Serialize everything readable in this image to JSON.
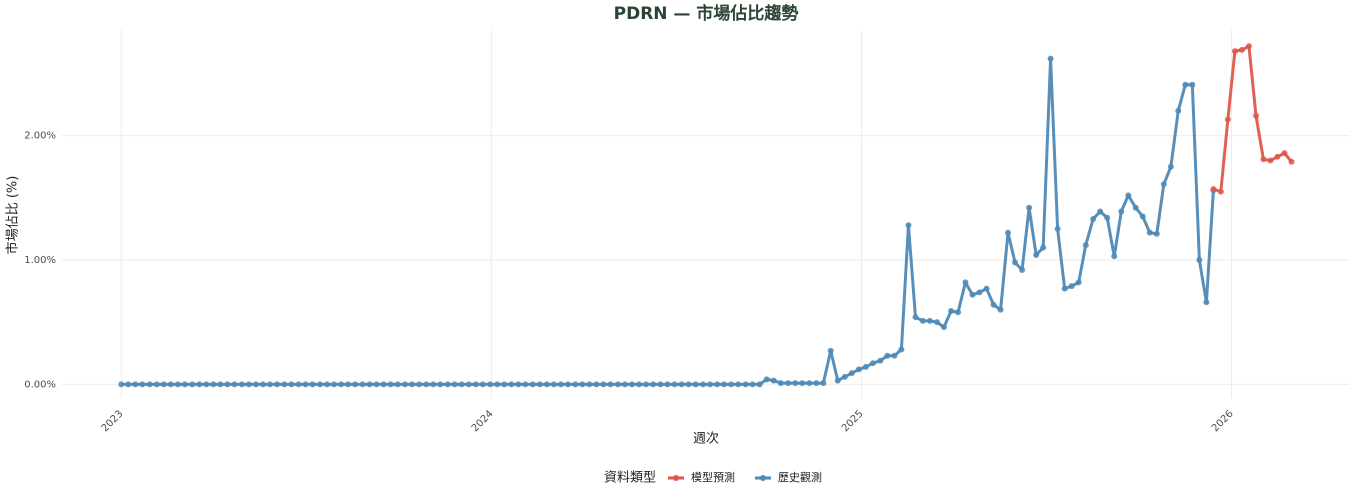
{
  "chart_data": {
    "type": "line",
    "title": "PDRN — 市場佔比趨勢",
    "xlabel": "週次",
    "ylabel": "市場佔比 (%)",
    "legend_title": "資料類型",
    "legend": "bottom",
    "grid": true,
    "xlim": [
      2022.84,
      2026.32
    ],
    "xticks": [
      2023,
      2024,
      2025,
      2026
    ],
    "ylim": [
      -0.11,
      2.85
    ],
    "yticks": [
      {
        "value": 0,
        "label": "0.00%"
      },
      {
        "value": 1,
        "label": "1.00%"
      },
      {
        "value": 2,
        "label": "2.00%"
      }
    ],
    "series": [
      {
        "name": "模型預測",
        "color": "#e0574a",
        "x": [
          2025.951,
          2025.971,
          2025.99,
          2026.009,
          2026.028,
          2026.047,
          2026.066,
          2026.086,
          2026.105,
          2026.124,
          2026.143,
          2026.162
        ],
        "values": [
          1.57,
          1.55,
          2.13,
          2.68,
          2.69,
          2.72,
          2.16,
          1.81,
          1.8,
          1.83,
          1.86,
          1.79
        ]
      },
      {
        "name": "歷史觀測",
        "color": "#4f89b6",
        "x": [
          2023.0,
          2023.019,
          2023.038,
          2023.057,
          2023.077,
          2023.096,
          2023.115,
          2023.134,
          2023.153,
          2023.172,
          2023.192,
          2023.211,
          2023.23,
          2023.249,
          2023.268,
          2023.287,
          2023.306,
          2023.326,
          2023.345,
          2023.364,
          2023.383,
          2023.402,
          2023.421,
          2023.441,
          2023.46,
          2023.479,
          2023.498,
          2023.517,
          2023.537,
          2023.556,
          2023.575,
          2023.594,
          2023.613,
          2023.632,
          2023.652,
          2023.671,
          2023.69,
          2023.709,
          2023.728,
          2023.747,
          2023.767,
          2023.786,
          2023.805,
          2023.824,
          2023.843,
          2023.862,
          2023.882,
          2023.901,
          2023.92,
          2023.939,
          2023.958,
          2023.977,
          2023.997,
          2024.016,
          2024.035,
          2024.054,
          2024.073,
          2024.092,
          2024.112,
          2024.131,
          2024.15,
          2024.169,
          2024.188,
          2024.207,
          2024.227,
          2024.246,
          2024.265,
          2024.284,
          2024.303,
          2024.322,
          2024.342,
          2024.361,
          2024.38,
          2024.399,
          2024.418,
          2024.437,
          2024.457,
          2024.476,
          2024.495,
          2024.514,
          2024.533,
          2024.552,
          2024.572,
          2024.591,
          2024.61,
          2024.629,
          2024.648,
          2024.667,
          2024.687,
          2024.706,
          2024.725,
          2024.744,
          2024.763,
          2024.782,
          2024.802,
          2024.821,
          2024.84,
          2024.859,
          2024.878,
          2024.897,
          2024.917,
          2024.936,
          2024.955,
          2024.974,
          2024.993,
          2025.012,
          2025.031,
          2025.051,
          2025.07,
          2025.089,
          2025.108,
          2025.127,
          2025.146,
          2025.166,
          2025.185,
          2025.204,
          2025.223,
          2025.242,
          2025.261,
          2025.281,
          2025.3,
          2025.319,
          2025.338,
          2025.357,
          2025.376,
          2025.396,
          2025.415,
          2025.434,
          2025.453,
          2025.472,
          2025.491,
          2025.511,
          2025.53,
          2025.549,
          2025.568,
          2025.587,
          2025.606,
          2025.626,
          2025.645,
          2025.664,
          2025.683,
          2025.702,
          2025.721,
          2025.741,
          2025.76,
          2025.779,
          2025.798,
          2025.817,
          2025.836,
          2025.856,
          2025.875,
          2025.894,
          2025.913,
          2025.932,
          2025.951
        ],
        "values": [
          0,
          0,
          0,
          0,
          0,
          0,
          0,
          0,
          0,
          0,
          0,
          0,
          0,
          0,
          0,
          0,
          0,
          0,
          0,
          0,
          0,
          0,
          0,
          0,
          0,
          0,
          0,
          0,
          0,
          0,
          0,
          0,
          0,
          0,
          0,
          0,
          0,
          0,
          0,
          0,
          0,
          0,
          0,
          0,
          0,
          0,
          0,
          0,
          0,
          0,
          0,
          0,
          0,
          0,
          0,
          0,
          0,
          0,
          0,
          0,
          0,
          0,
          0,
          0,
          0,
          0,
          0,
          0,
          0,
          0,
          0,
          0,
          0,
          0,
          0,
          0,
          0,
          0,
          0,
          0,
          0,
          0,
          0,
          0,
          0,
          0,
          0,
          0,
          0,
          0,
          0,
          0.04,
          0.03,
          0.01,
          0.01,
          0.01,
          0.01,
          0.01,
          0.01,
          0.01,
          0.27,
          0.03,
          0.06,
          0.09,
          0.12,
          0.14,
          0.17,
          0.19,
          0.23,
          0.23,
          0.28,
          1.28,
          0.54,
          0.51,
          0.51,
          0.5,
          0.46,
          0.59,
          0.58,
          0.82,
          0.72,
          0.74,
          0.77,
          0.64,
          0.6,
          1.22,
          0.98,
          0.92,
          1.42,
          1.04,
          1.1,
          2.62,
          1.25,
          0.77,
          0.79,
          0.82,
          1.12,
          1.33,
          1.39,
          1.34,
          1.03,
          1.39,
          1.52,
          1.42,
          1.35,
          1.22,
          1.21,
          1.61,
          1.75,
          2.2,
          2.41,
          2.41,
          1.0,
          0.66,
          1.56
        ]
      }
    ]
  }
}
